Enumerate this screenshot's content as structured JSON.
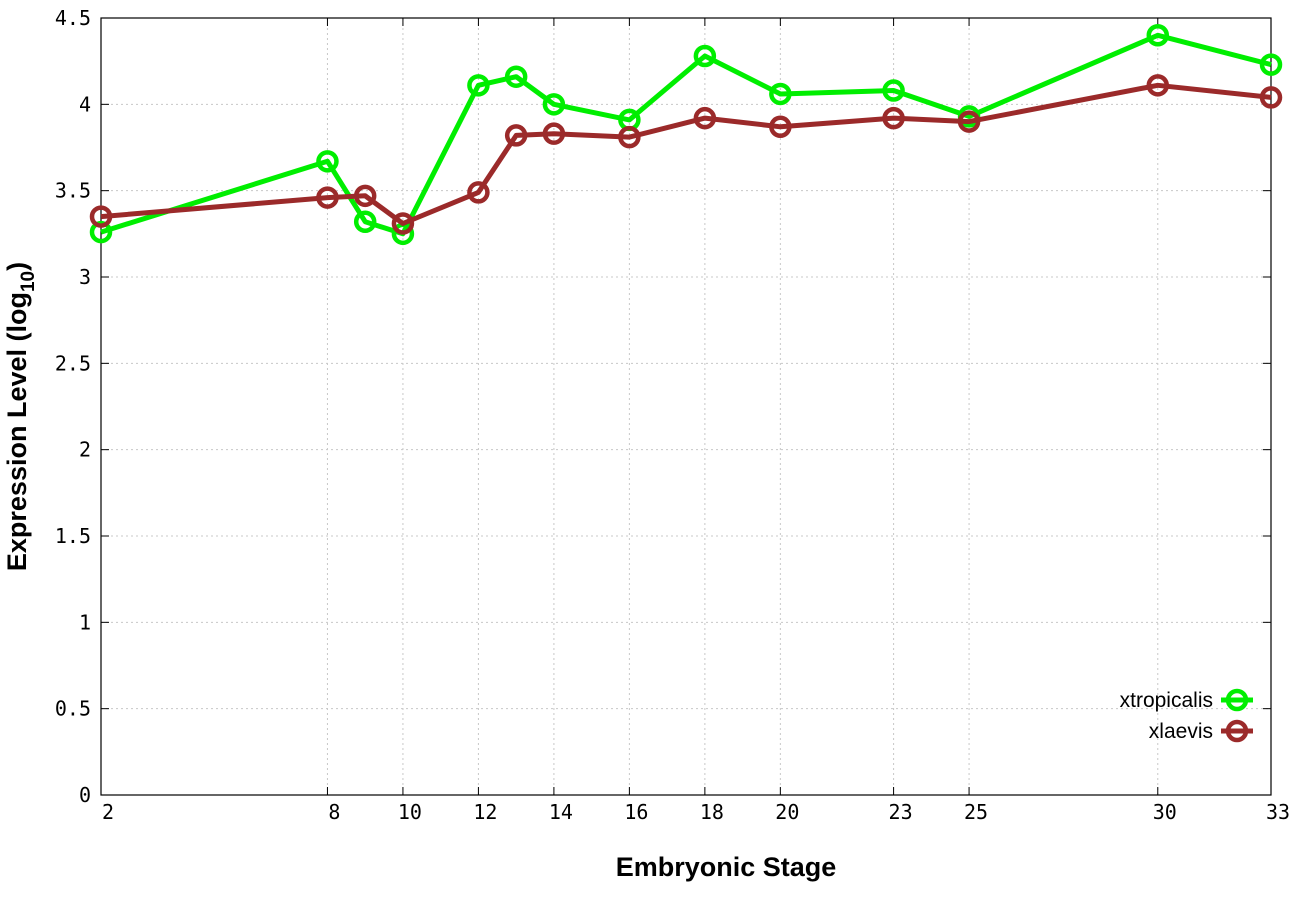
{
  "chart_data": {
    "type": "line",
    "title": "",
    "xlabel": "Embryonic Stage",
    "ylabel_main": "Expression Level (log",
    "ylabel_sub": "10",
    "ylabel_close": ")",
    "xlim": [
      2,
      33
    ],
    "ylim": [
      0,
      4.5
    ],
    "x_ticks": [
      2,
      8,
      10,
      12,
      14,
      16,
      18,
      20,
      23,
      25,
      30,
      33
    ],
    "y_ticks": [
      0,
      0.5,
      1,
      1.5,
      2,
      2.5,
      3,
      3.5,
      4,
      4.5
    ],
    "y_tick_labels": [
      "0",
      "0.5",
      "1",
      "1.5",
      "2",
      "2.5",
      "3",
      "3.5",
      "4",
      "4.5"
    ],
    "grid": true,
    "legend_position": "bottom-right",
    "series": [
      {
        "name": "xtropicalis",
        "color": "#00ee00",
        "x": [
          2,
          8,
          9,
          10,
          12,
          13,
          14,
          16,
          18,
          20,
          23,
          25,
          30,
          33
        ],
        "y": [
          3.26,
          3.67,
          3.32,
          3.25,
          4.11,
          4.16,
          4.0,
          3.91,
          4.28,
          4.06,
          4.08,
          3.93,
          4.4,
          4.23
        ]
      },
      {
        "name": "xlaevis",
        "color": "#9b2a2a",
        "x": [
          2,
          8,
          9,
          10,
          12,
          13,
          14,
          16,
          18,
          20,
          23,
          25,
          30,
          33
        ],
        "y": [
          3.35,
          3.46,
          3.47,
          3.31,
          3.49,
          3.82,
          3.83,
          3.81,
          3.92,
          3.87,
          3.92,
          3.9,
          4.11,
          4.04
        ]
      }
    ]
  }
}
